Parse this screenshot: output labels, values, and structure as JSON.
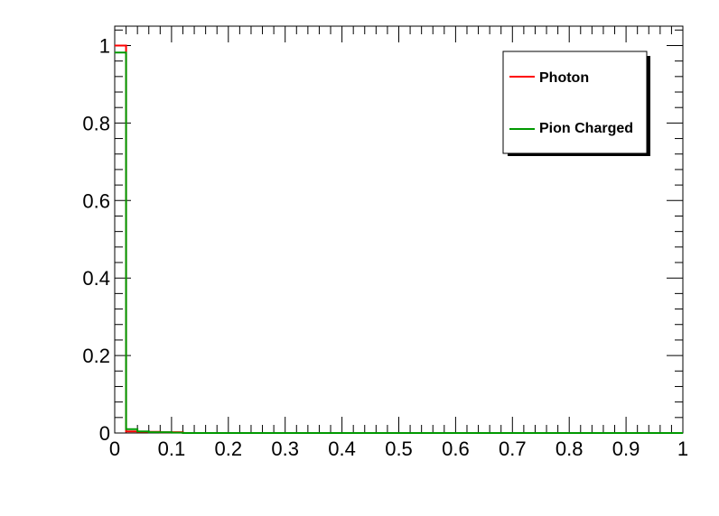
{
  "chart_data": {
    "type": "line",
    "title": "",
    "xlabel": "",
    "ylabel": "",
    "xlim": [
      0,
      1
    ],
    "ylim": [
      0,
      1.05
    ],
    "grid": false,
    "legend_position": "top-right",
    "x_ticks": [
      "0",
      "0.1",
      "0.2",
      "0.3",
      "0.4",
      "0.5",
      "0.6",
      "0.7",
      "0.8",
      "0.9",
      "1"
    ],
    "y_ticks": [
      "0",
      "0.2",
      "0.4",
      "0.6",
      "0.8",
      "1"
    ],
    "bin_edges": [
      0,
      0.02,
      0.04,
      0.06,
      0.08,
      0.1,
      0.12,
      1.0
    ],
    "series": [
      {
        "name": "Photon",
        "color": "#ff0000",
        "values": [
          1.0,
          0.004,
          0.003,
          0.003,
          0.002,
          0.002,
          0.0
        ]
      },
      {
        "name": "Pion Charged",
        "color": "#009900",
        "values": [
          0.982,
          0.01,
          0.004,
          0.002,
          0.002,
          0.001,
          0.0
        ]
      }
    ]
  }
}
